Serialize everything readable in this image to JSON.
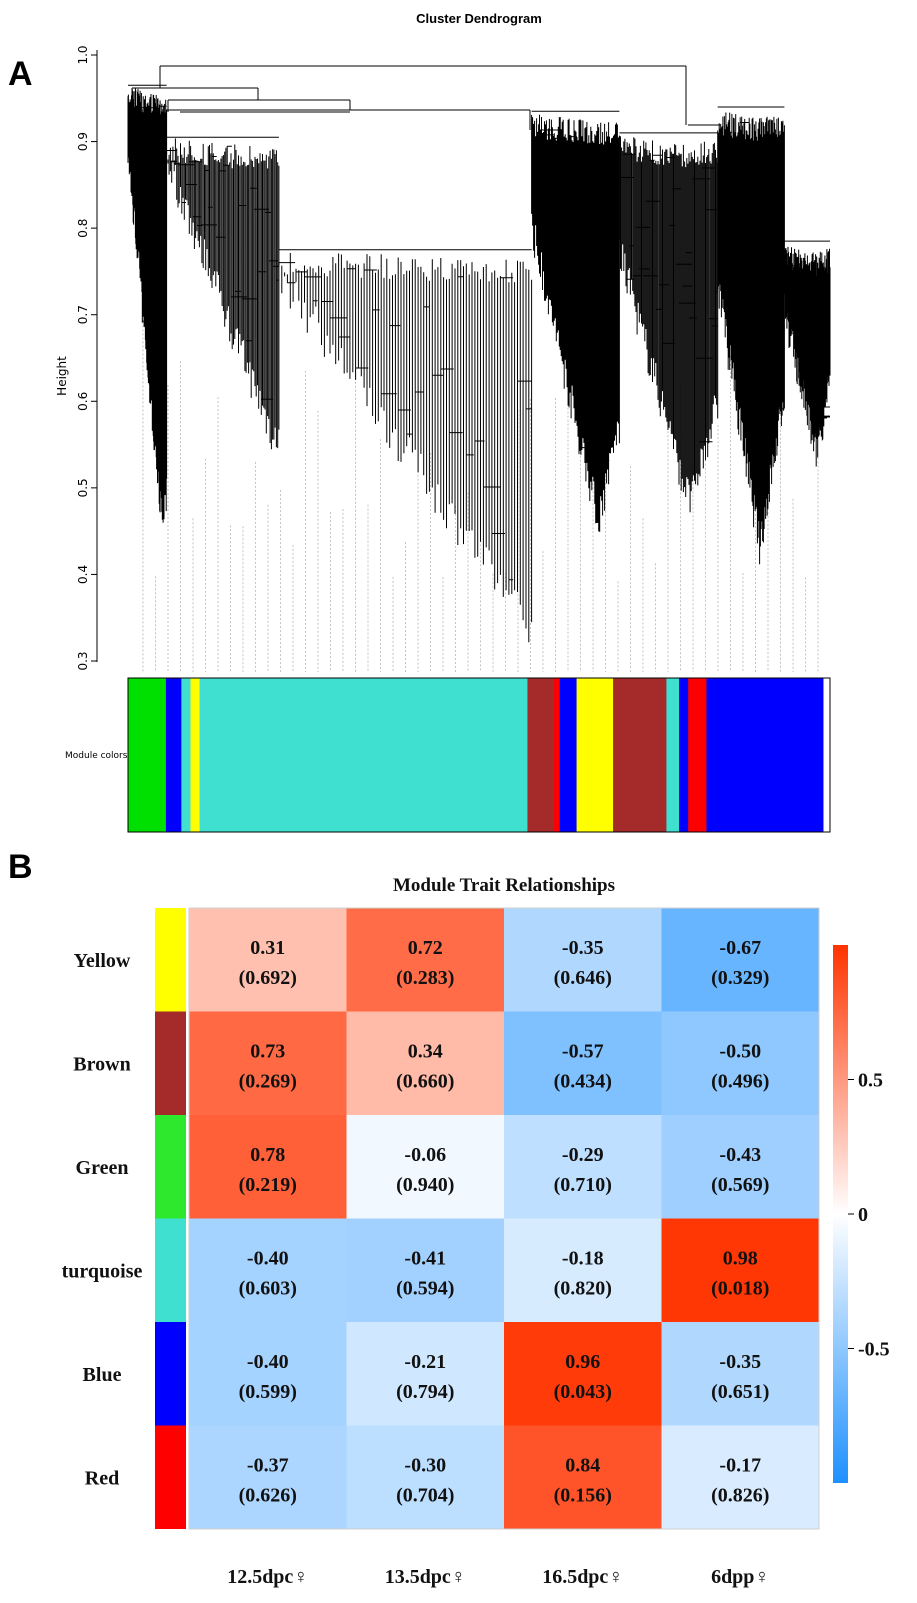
{
  "figure": {
    "panel_a_label": "A",
    "panel_b_label": "B"
  },
  "chart_data": [
    {
      "type": "dendrogram",
      "title": "Cluster Dendrogram",
      "ylabel": "Height",
      "ylim": [
        0.3,
        1.0
      ],
      "yticks": [
        "0.3",
        "0.4",
        "0.5",
        "0.6",
        "0.7",
        "0.8",
        "0.9",
        "1.0"
      ],
      "color_bar_label": "Module colors",
      "module_color_sequence": [
        {
          "module": "green",
          "color": "#00e000",
          "fraction": 0.054
        },
        {
          "module": "blue",
          "color": "#0000ff",
          "fraction": 0.022
        },
        {
          "module": "turquoise",
          "color": "#40e0d0",
          "fraction": 0.013
        },
        {
          "module": "yellow",
          "color": "#ffff00",
          "fraction": 0.013
        },
        {
          "module": "turquoise",
          "color": "#40e0d0",
          "fraction": 0.467
        },
        {
          "module": "brown",
          "color": "#a52a2a",
          "fraction": 0.038
        },
        {
          "module": "red",
          "color": "#ff0000",
          "fraction": 0.008
        },
        {
          "module": "blue",
          "color": "#0000ff",
          "fraction": 0.024
        },
        {
          "module": "yellow",
          "color": "#ffff00",
          "fraction": 0.052
        },
        {
          "module": "brown",
          "color": "#a52a2a",
          "fraction": 0.076
        },
        {
          "module": "turquoise",
          "color": "#40e0d0",
          "fraction": 0.018
        },
        {
          "module": "blue",
          "color": "#0000ff",
          "fraction": 0.013
        },
        {
          "module": "red",
          "color": "#ff0000",
          "fraction": 0.026
        },
        {
          "module": "blue",
          "color": "#0000ff",
          "fraction": 0.166
        }
      ],
      "branch_minima": [
        {
          "position": 0.05,
          "height": 0.43
        },
        {
          "position": 0.21,
          "height": 0.53
        },
        {
          "position": 0.57,
          "height": 0.32
        },
        {
          "position": 0.67,
          "height": 0.44
        },
        {
          "position": 0.8,
          "height": 0.46
        },
        {
          "position": 0.9,
          "height": 0.41
        },
        {
          "position": 0.98,
          "height": 0.52
        }
      ]
    },
    {
      "type": "heatmap",
      "title": "Module Trait Relationships",
      "rows": [
        "Yellow",
        "Brown",
        "Green",
        "turquoise",
        "Blue",
        "Red"
      ],
      "row_colors": [
        "#ffff00",
        "#a52a2a",
        "#2ee82e",
        "#40e0d0",
        "#0000ff",
        "#ff0000"
      ],
      "columns": [
        "12.5dpc♀",
        "13.5dpc♀",
        "16.5dpc♀",
        "6dpp♀"
      ],
      "values": [
        [
          0.31,
          0.72,
          -0.35,
          -0.67
        ],
        [
          0.73,
          0.34,
          -0.57,
          -0.5
        ],
        [
          0.78,
          -0.06,
          -0.29,
          -0.43
        ],
        [
          -0.4,
          -0.41,
          -0.18,
          0.98
        ],
        [
          -0.4,
          -0.21,
          0.96,
          -0.35
        ],
        [
          -0.37,
          -0.3,
          0.84,
          -0.17
        ]
      ],
      "value_labels": [
        [
          "0.31",
          "0.72",
          "-0.35",
          "-0.67"
        ],
        [
          "0.73",
          "0.34",
          "-0.57",
          "-0.50"
        ],
        [
          "0.78",
          "-0.06",
          "-0.29",
          "-0.43"
        ],
        [
          "-0.40",
          "-0.41",
          "-0.18",
          "0.98"
        ],
        [
          "-0.40",
          "-0.21",
          "0.96",
          "-0.35"
        ],
        [
          "-0.37",
          "-0.30",
          "0.84",
          "-0.17"
        ]
      ],
      "p_values": [
        [
          "(0.692)",
          "(0.283)",
          "(0.646)",
          "(0.329)"
        ],
        [
          "(0.269)",
          "(0.660)",
          "(0.434)",
          "(0.496)"
        ],
        [
          "(0.219)",
          "(0.940)",
          "(0.710)",
          "(0.569)"
        ],
        [
          "(0.603)",
          "(0.594)",
          "(0.820)",
          "(0.018)"
        ],
        [
          "(0.599)",
          "(0.794)",
          "(0.043)",
          "(0.651)"
        ],
        [
          "(0.626)",
          "(0.704)",
          "(0.156)",
          "(0.826)"
        ]
      ],
      "colorbar": {
        "range": [
          -1,
          1
        ],
        "ticks": [
          0.5,
          0,
          -0.5
        ],
        "tick_labels": [
          "0.5",
          "0",
          "-0.5"
        ],
        "low_color": "#1e90ff",
        "mid_color": "#ffffff",
        "high_color": "#ff3300"
      }
    }
  ]
}
